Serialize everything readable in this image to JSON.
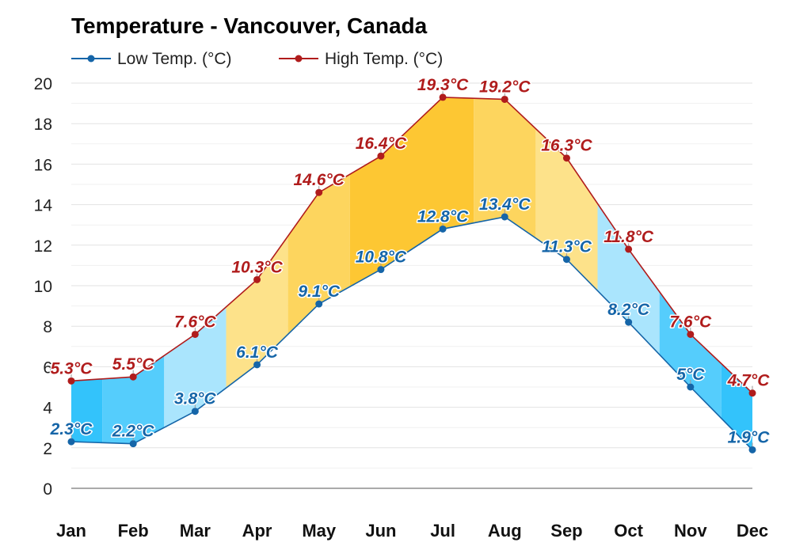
{
  "chart_data": {
    "type": "line",
    "title": "Temperature - Vancouver, Canada",
    "categories": [
      "Jan",
      "Feb",
      "Mar",
      "Apr",
      "May",
      "Jun",
      "Jul",
      "Aug",
      "Sep",
      "Oct",
      "Nov",
      "Dec"
    ],
    "series": [
      {
        "name": "Low Temp. (°C)",
        "color": "#1565a8",
        "values": [
          2.3,
          2.2,
          3.8,
          6.1,
          9.1,
          10.8,
          12.8,
          13.4,
          11.3,
          8.2,
          5.0,
          1.9
        ],
        "labels": [
          "2.3°C",
          "2.2°C",
          "3.8°C",
          "6.1°C",
          "9.1°C",
          "10.8°C",
          "12.8°C",
          "13.4°C",
          "11.3°C",
          "8.2°C",
          "5°C",
          "1.9°C"
        ]
      },
      {
        "name": "High Temp. (°C)",
        "color": "#b01c1c",
        "values": [
          5.3,
          5.5,
          7.6,
          10.3,
          14.6,
          16.4,
          19.3,
          19.2,
          16.3,
          11.8,
          7.6,
          4.7
        ],
        "labels": [
          "5.3°C",
          "5.5°C",
          "7.6°C",
          "10.3°C",
          "14.6°C",
          "16.4°C",
          "19.3°C",
          "19.2°C",
          "16.3°C",
          "11.8°C",
          "7.6°C",
          "4.7°C"
        ]
      }
    ],
    "band_fill_colors": [
      "#33c3fb",
      "#55cdfc",
      "#aae5fd",
      "#fde28a",
      "#fdd55e",
      "#fdc733",
      "#fdc733",
      "#fdd55e",
      "#fde28a",
      "#aae5fd",
      "#55cdfc",
      "#33c3fb"
    ],
    "ylim": [
      0,
      20
    ],
    "yticks": [
      0,
      2,
      4,
      6,
      8,
      10,
      12,
      14,
      16,
      18,
      20
    ],
    "xlabel": "",
    "ylabel": "",
    "grid": true,
    "legend": "top-left"
  }
}
